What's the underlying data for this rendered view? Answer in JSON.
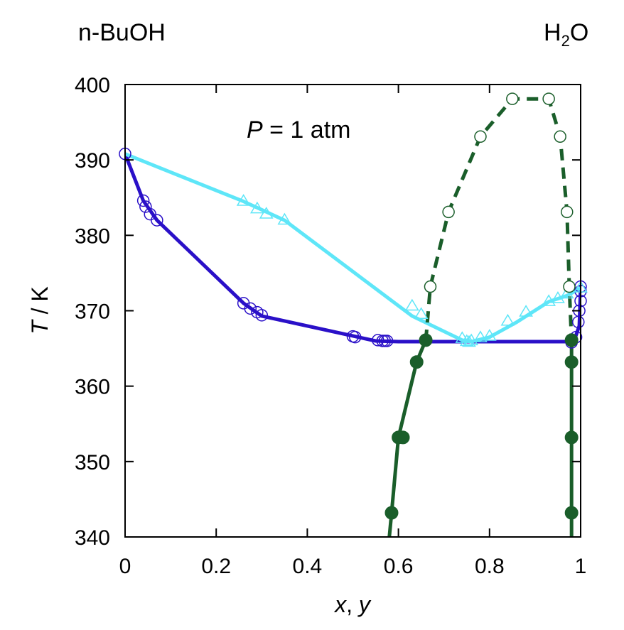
{
  "chart_data": {
    "type": "scatter",
    "corner_labels": {
      "left": "n-BuOH",
      "right_main": "H",
      "right_sub": "2",
      "right_tail": "O"
    },
    "annotation": {
      "italic": "P",
      "rest": " = 1 atm"
    },
    "xlabel": {
      "italic": "x",
      "sep": ", ",
      "italic2": "y"
    },
    "ylabel": {
      "italic": "T",
      "rest": " / K"
    },
    "xlim": [
      0,
      1
    ],
    "ylim": [
      340,
      400
    ],
    "x_ticks": [
      0,
      0.2,
      0.4,
      0.6,
      0.8,
      1
    ],
    "x_tick_labels": [
      "0",
      "0.2",
      "0.4",
      "0.6",
      "0.8",
      "1"
    ],
    "y_ticks": [
      340,
      350,
      360,
      370,
      380,
      390,
      400
    ],
    "y_tick_labels": [
      "340",
      "350",
      "360",
      "370",
      "380",
      "390",
      "400"
    ],
    "colors": {
      "liquid": "#2a10c8",
      "vapor": "#5ee6f8",
      "solubility": "#1a5e2a"
    },
    "series": [
      {
        "kind": "line",
        "color": "liquid",
        "points": [
          [
            0,
            390.8
          ],
          [
            0.04,
            384.6
          ],
          [
            0.07,
            382.0
          ],
          [
            0.26,
            371.0
          ],
          [
            0.3,
            369.3
          ],
          [
            0.55,
            366.0
          ],
          [
            0.6,
            365.9
          ],
          [
            0.985,
            365.9
          ],
          [
            0.997,
            368.0
          ],
          [
            1.0,
            373.2
          ]
        ]
      },
      {
        "kind": "markers",
        "marker": "open-circle",
        "color": "liquid",
        "points": [
          [
            0,
            390.8
          ],
          [
            0.04,
            384.6
          ],
          [
            0.045,
            383.8
          ],
          [
            0.055,
            382.8
          ],
          [
            0.07,
            382.0
          ],
          [
            0.26,
            371.0
          ],
          [
            0.275,
            370.3
          ],
          [
            0.29,
            369.8
          ],
          [
            0.3,
            369.4
          ],
          [
            0.5,
            366.6
          ],
          [
            0.505,
            366.5
          ],
          [
            0.555,
            366.1
          ],
          [
            0.565,
            366.0
          ],
          [
            0.57,
            366.0
          ],
          [
            0.575,
            366.0
          ],
          [
            0.98,
            365.8
          ],
          [
            0.99,
            366.5
          ],
          [
            0.995,
            368.5
          ],
          [
            0.997,
            370.0
          ],
          [
            1.0,
            371.3
          ],
          [
            1.0,
            372.6
          ],
          [
            1.0,
            373.2
          ]
        ]
      },
      {
        "kind": "line",
        "color": "vapor",
        "points": [
          [
            0,
            390.8
          ],
          [
            0.26,
            384.5
          ],
          [
            0.35,
            382.0
          ],
          [
            0.63,
            369.3
          ],
          [
            0.74,
            366.1
          ],
          [
            0.76,
            365.9
          ],
          [
            0.8,
            366.5
          ],
          [
            0.86,
            368.5
          ],
          [
            0.93,
            371.2
          ],
          [
            0.97,
            372.0
          ],
          [
            1.0,
            373.0
          ]
        ]
      },
      {
        "kind": "markers",
        "marker": "open-triangle",
        "color": "vapor",
        "points": [
          [
            0.26,
            384.5
          ],
          [
            0.29,
            383.5
          ],
          [
            0.31,
            382.8
          ],
          [
            0.35,
            382.0
          ],
          [
            0.63,
            370.6
          ],
          [
            0.65,
            369.5
          ],
          [
            0.74,
            366.3
          ],
          [
            0.75,
            365.9
          ],
          [
            0.755,
            365.8
          ],
          [
            0.76,
            366.0
          ],
          [
            0.78,
            366.4
          ],
          [
            0.8,
            366.6
          ],
          [
            0.84,
            368.6
          ],
          [
            0.88,
            369.8
          ],
          [
            0.93,
            371.2
          ],
          [
            0.95,
            371.6
          ],
          [
            0.97,
            372.2
          ],
          [
            1.0,
            373.0
          ]
        ]
      },
      {
        "kind": "line",
        "dash": true,
        "color": "solubility",
        "points": [
          [
            0.66,
            366.0
          ],
          [
            0.67,
            373.2
          ],
          [
            0.71,
            383.1
          ],
          [
            0.78,
            393.1
          ],
          [
            0.85,
            398.1
          ],
          [
            0.93,
            398.1
          ],
          [
            0.955,
            393.1
          ],
          [
            0.97,
            383.1
          ],
          [
            0.975,
            373.2
          ],
          [
            0.98,
            366.0
          ]
        ]
      },
      {
        "kind": "markers",
        "marker": "open-circle-small",
        "color": "solubility",
        "points": [
          [
            0.67,
            373.2
          ],
          [
            0.71,
            383.1
          ],
          [
            0.78,
            393.1
          ],
          [
            0.85,
            398.1
          ],
          [
            0.93,
            398.1
          ],
          [
            0.955,
            393.1
          ],
          [
            0.97,
            383.1
          ],
          [
            0.975,
            373.2
          ]
        ]
      },
      {
        "kind": "line",
        "color": "solubility",
        "points": [
          [
            0.58,
            340.0
          ],
          [
            0.585,
            343.2
          ],
          [
            0.6,
            353.2
          ],
          [
            0.64,
            363.2
          ],
          [
            0.66,
            366.1
          ]
        ]
      },
      {
        "kind": "markers",
        "marker": "filled-circle",
        "color": "solubility",
        "points": [
          [
            0.585,
            343.2
          ],
          [
            0.6,
            353.2
          ],
          [
            0.61,
            353.2
          ],
          [
            0.64,
            363.2
          ],
          [
            0.66,
            366.1
          ]
        ]
      },
      {
        "kind": "line",
        "color": "solubility",
        "points": [
          [
            0.98,
            340.0
          ],
          [
            0.98,
            343.2
          ],
          [
            0.98,
            353.2
          ],
          [
            0.98,
            363.2
          ],
          [
            0.98,
            366.1
          ]
        ]
      },
      {
        "kind": "markers",
        "marker": "filled-circle",
        "color": "solubility",
        "points": [
          [
            0.98,
            343.2
          ],
          [
            0.98,
            353.2
          ],
          [
            0.98,
            363.2
          ],
          [
            0.98,
            366.1
          ]
        ]
      }
    ]
  }
}
